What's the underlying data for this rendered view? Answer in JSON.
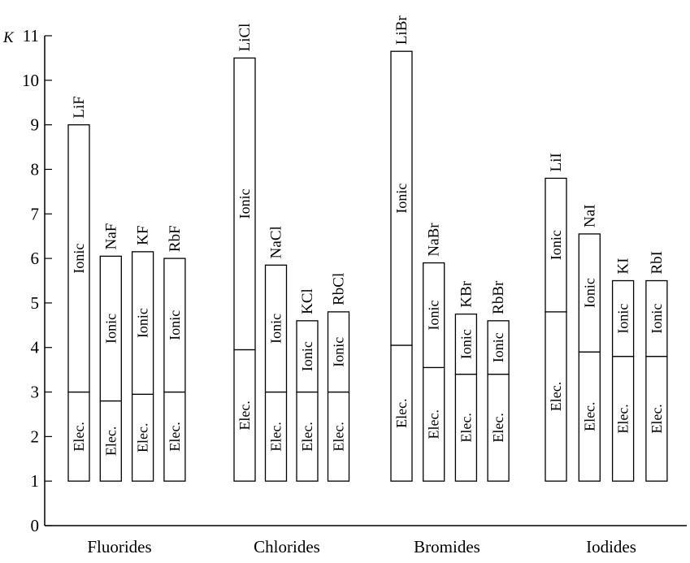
{
  "chart_data": {
    "type": "bar",
    "title": "",
    "xlabel": "",
    "ylabel": "K",
    "ylim": [
      0,
      11
    ],
    "yticks": [
      "0",
      "1",
      "2",
      "3",
      "4",
      "5",
      "6",
      "7",
      "8",
      "9",
      "10",
      "11"
    ],
    "grid": false,
    "bar_base": 1,
    "segment_labels": {
      "lower": "Elec.",
      "upper": "Ionic"
    },
    "groups": [
      {
        "name": "Fluorides",
        "bars": [
          {
            "label": "LiF",
            "electronic": 2.0,
            "ionic": 6.0,
            "total": 9.0
          },
          {
            "label": "NaF",
            "electronic": 1.8,
            "ionic": 3.25,
            "total": 6.05
          },
          {
            "label": "KF",
            "electronic": 1.95,
            "ionic": 3.2,
            "total": 6.15
          },
          {
            "label": "RbF",
            "electronic": 2.0,
            "ionic": 3.0,
            "total": 6.0
          }
        ]
      },
      {
        "name": "Chlorides",
        "bars": [
          {
            "label": "LiCl",
            "electronic": 2.95,
            "ionic": 6.55,
            "total": 10.5
          },
          {
            "label": "NaCl",
            "electronic": 2.0,
            "ionic": 2.85,
            "total": 5.85
          },
          {
            "label": "KCl",
            "electronic": 2.0,
            "ionic": 1.6,
            "total": 4.6
          },
          {
            "label": "RbCl",
            "electronic": 2.0,
            "ionic": 1.8,
            "total": 4.8
          }
        ]
      },
      {
        "name": "Bromides",
        "bars": [
          {
            "label": "LiBr",
            "electronic": 3.05,
            "ionic": 6.6,
            "total": 10.65
          },
          {
            "label": "NaBr",
            "electronic": 2.55,
            "ionic": 2.35,
            "total": 5.9
          },
          {
            "label": "KBr",
            "electronic": 2.4,
            "ionic": 1.35,
            "total": 4.75
          },
          {
            "label": "RbBr",
            "electronic": 2.4,
            "ionic": 1.2,
            "total": 4.6
          }
        ]
      },
      {
        "name": "Iodides",
        "bars": [
          {
            "label": "LiI",
            "electronic": 3.8,
            "ionic": 3.0,
            "total": 7.8
          },
          {
            "label": "NaI",
            "electronic": 2.9,
            "ionic": 2.65,
            "total": 6.55
          },
          {
            "label": "KI",
            "electronic": 2.8,
            "ionic": 1.7,
            "total": 5.5
          },
          {
            "label": "RbI",
            "electronic": 2.8,
            "ionic": 1.7,
            "total": 5.5
          }
        ]
      }
    ]
  }
}
